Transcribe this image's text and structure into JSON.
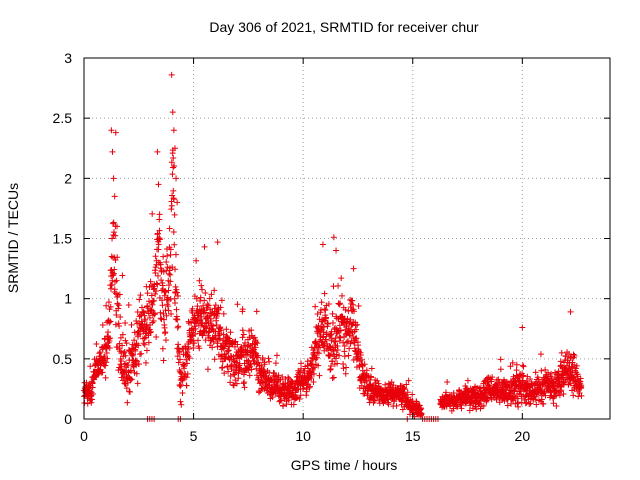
{
  "chart_data": {
    "type": "scatter",
    "title": "Day 306 of 2021, SRMTID for receiver chur",
    "xlabel": "GPS time / hours",
    "ylabel": "SRMTID / TECUs",
    "xlim": [
      0,
      24
    ],
    "ylim": [
      0,
      3
    ],
    "x_ticks": [
      0,
      5,
      10,
      15,
      20
    ],
    "y_ticks": [
      0,
      0.5,
      1,
      1.5,
      2,
      2.5,
      3
    ],
    "x_tick_labels": [
      "0",
      "5",
      "10",
      "15",
      "20"
    ],
    "y_tick_labels": [
      "0",
      "0.5",
      "1",
      "1.5",
      "2",
      "2.5",
      "3"
    ],
    "grid": true,
    "marker": "+",
    "series": [
      {
        "name": "SRMTID",
        "color": "#e8000b",
        "envelope": [
          [
            0.0,
            0.2,
            0.12
          ],
          [
            0.3,
            0.22,
            0.1
          ],
          [
            0.5,
            0.4,
            0.12
          ],
          [
            0.8,
            0.48,
            0.12
          ],
          [
            1.0,
            0.55,
            0.18
          ],
          [
            1.2,
            0.8,
            0.3
          ],
          [
            1.3,
            1.4,
            0.5
          ],
          [
            1.5,
            1.0,
            0.4
          ],
          [
            1.7,
            0.5,
            0.25
          ],
          [
            2.0,
            0.35,
            0.2
          ],
          [
            2.3,
            0.55,
            0.25
          ],
          [
            2.6,
            0.7,
            0.25
          ],
          [
            2.9,
            0.8,
            0.3
          ],
          [
            3.2,
            0.9,
            0.35
          ],
          [
            3.4,
            1.5,
            0.4
          ],
          [
            3.6,
            0.9,
            0.35
          ],
          [
            3.9,
            1.1,
            0.4
          ],
          [
            4.05,
            2.0,
            0.5
          ],
          [
            4.2,
            0.9,
            0.4
          ],
          [
            4.4,
            0.3,
            0.2
          ],
          [
            4.7,
            0.5,
            0.2
          ],
          [
            5.0,
            0.8,
            0.25
          ],
          [
            5.3,
            0.85,
            0.25
          ],
          [
            5.6,
            0.75,
            0.25
          ],
          [
            6.0,
            0.8,
            0.25
          ],
          [
            6.3,
            0.65,
            0.22
          ],
          [
            6.7,
            0.5,
            0.2
          ],
          [
            7.0,
            0.45,
            0.18
          ],
          [
            7.4,
            0.5,
            0.18
          ],
          [
            7.8,
            0.55,
            0.18
          ],
          [
            8.0,
            0.4,
            0.15
          ],
          [
            8.5,
            0.28,
            0.1
          ],
          [
            9.0,
            0.25,
            0.1
          ],
          [
            9.5,
            0.22,
            0.1
          ],
          [
            10.0,
            0.3,
            0.12
          ],
          [
            10.4,
            0.4,
            0.15
          ],
          [
            10.8,
            0.75,
            0.25
          ],
          [
            11.0,
            0.85,
            0.3
          ],
          [
            11.3,
            0.5,
            0.22
          ],
          [
            11.6,
            0.75,
            0.25
          ],
          [
            12.0,
            0.7,
            0.25
          ],
          [
            12.3,
            0.8,
            0.25
          ],
          [
            12.6,
            0.4,
            0.15
          ],
          [
            13.0,
            0.25,
            0.1
          ],
          [
            13.5,
            0.2,
            0.08
          ],
          [
            14.0,
            0.2,
            0.08
          ],
          [
            14.5,
            0.2,
            0.1
          ],
          [
            15.0,
            0.1,
            0.06
          ],
          [
            15.5,
            0.05,
            0.05
          ],
          [
            16.0,
            0.05,
            0.05
          ],
          [
            16.3,
            0.15,
            0.06
          ],
          [
            17.0,
            0.15,
            0.06
          ],
          [
            17.5,
            0.18,
            0.08
          ],
          [
            18.0,
            0.18,
            0.08
          ],
          [
            18.5,
            0.25,
            0.1
          ],
          [
            19.0,
            0.22,
            0.1
          ],
          [
            19.5,
            0.22,
            0.1
          ],
          [
            20.0,
            0.3,
            0.15
          ],
          [
            20.5,
            0.2,
            0.1
          ],
          [
            21.0,
            0.28,
            0.12
          ],
          [
            21.5,
            0.25,
            0.12
          ],
          [
            22.0,
            0.4,
            0.15
          ],
          [
            22.3,
            0.38,
            0.15
          ],
          [
            22.7,
            0.25,
            0.1
          ]
        ],
        "spikes": [
          [
            1.25,
            2.4
          ],
          [
            1.3,
            2.22
          ],
          [
            1.35,
            2.0
          ],
          [
            1.4,
            1.85
          ],
          [
            1.45,
            2.38
          ],
          [
            3.35,
            2.22
          ],
          [
            3.4,
            1.95
          ],
          [
            3.45,
            1.7
          ],
          [
            4.0,
            2.86
          ],
          [
            4.05,
            2.55
          ],
          [
            4.1,
            2.4
          ],
          [
            4.15,
            2.25
          ],
          [
            4.2,
            2.0
          ],
          [
            4.25,
            1.8
          ],
          [
            6.1,
            1.47
          ],
          [
            5.5,
            1.43
          ],
          [
            10.9,
            1.45
          ],
          [
            11.4,
            1.51
          ],
          [
            11.5,
            1.4
          ],
          [
            12.3,
            1.25
          ],
          [
            20.0,
            0.76
          ],
          [
            22.2,
            0.89
          ],
          [
            21.8,
            0.55
          ]
        ],
        "zero_points_x": [
          2.9,
          3.0,
          3.1,
          3.2,
          4.3,
          4.4,
          14.75,
          15.45,
          15.55,
          15.65,
          15.75,
          15.85,
          15.95,
          16.05,
          16.15
        ]
      }
    ]
  }
}
